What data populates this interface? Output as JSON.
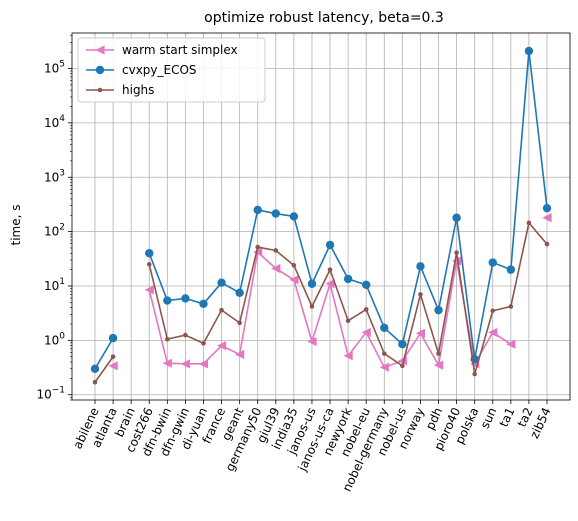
{
  "chart_data": {
    "type": "line",
    "title": "optimize robust latency, beta=0.3",
    "xlabel": "",
    "ylabel": "time, s",
    "yscale": "log",
    "ylim": [
      0.08,
      450000
    ],
    "y_tick_labels": [
      "10^-1",
      "10^0",
      "10^1",
      "10^2",
      "10^3",
      "10^4",
      "10^5"
    ],
    "grid": true,
    "legend": "top-left",
    "categories": [
      "abilene",
      "atlanta",
      "brain",
      "cost266",
      "dfn-bwin",
      "dfn-gwin",
      "di-yuan",
      "france",
      "geant",
      "germany50",
      "giul39",
      "india35",
      "janos-us",
      "janos-us-ca",
      "newyork",
      "nobel-eu",
      "nobel-germany",
      "nobel-us",
      "norway",
      "pdh",
      "pioro40",
      "polska",
      "sun",
      "ta1",
      "ta2",
      "zib54"
    ],
    "series": [
      {
        "name": "warm start simplex",
        "color": "#e377c2",
        "marker": "triangle-left",
        "values": [
          null,
          0.34,
          null,
          8.5,
          0.38,
          0.37,
          0.37,
          0.8,
          0.55,
          42,
          21,
          13,
          0.95,
          11,
          0.52,
          1.4,
          0.32,
          0.42,
          1.35,
          0.35,
          29,
          0.37,
          1.4,
          0.85,
          null,
          180
        ]
      },
      {
        "name": "cvxpy_ECOS",
        "color": "#1f77b4",
        "marker": "circle",
        "values": [
          0.3,
          1.1,
          null,
          40,
          5.4,
          5.9,
          4.7,
          11.5,
          7.5,
          250,
          215,
          190,
          11,
          57,
          13.5,
          10.5,
          1.7,
          0.85,
          23,
          3.6,
          180,
          0.45,
          27,
          20,
          210000,
          270
        ]
      },
      {
        "name": "highs",
        "color": "#8c564b",
        "marker": "small-circle",
        "values": [
          0.17,
          0.5,
          null,
          25,
          1.05,
          1.25,
          0.88,
          3.6,
          2.1,
          52,
          45,
          24,
          4.2,
          20,
          2.3,
          3.7,
          0.57,
          0.34,
          7,
          0.57,
          41,
          0.24,
          3.5,
          4.2,
          145,
          59
        ]
      }
    ]
  }
}
